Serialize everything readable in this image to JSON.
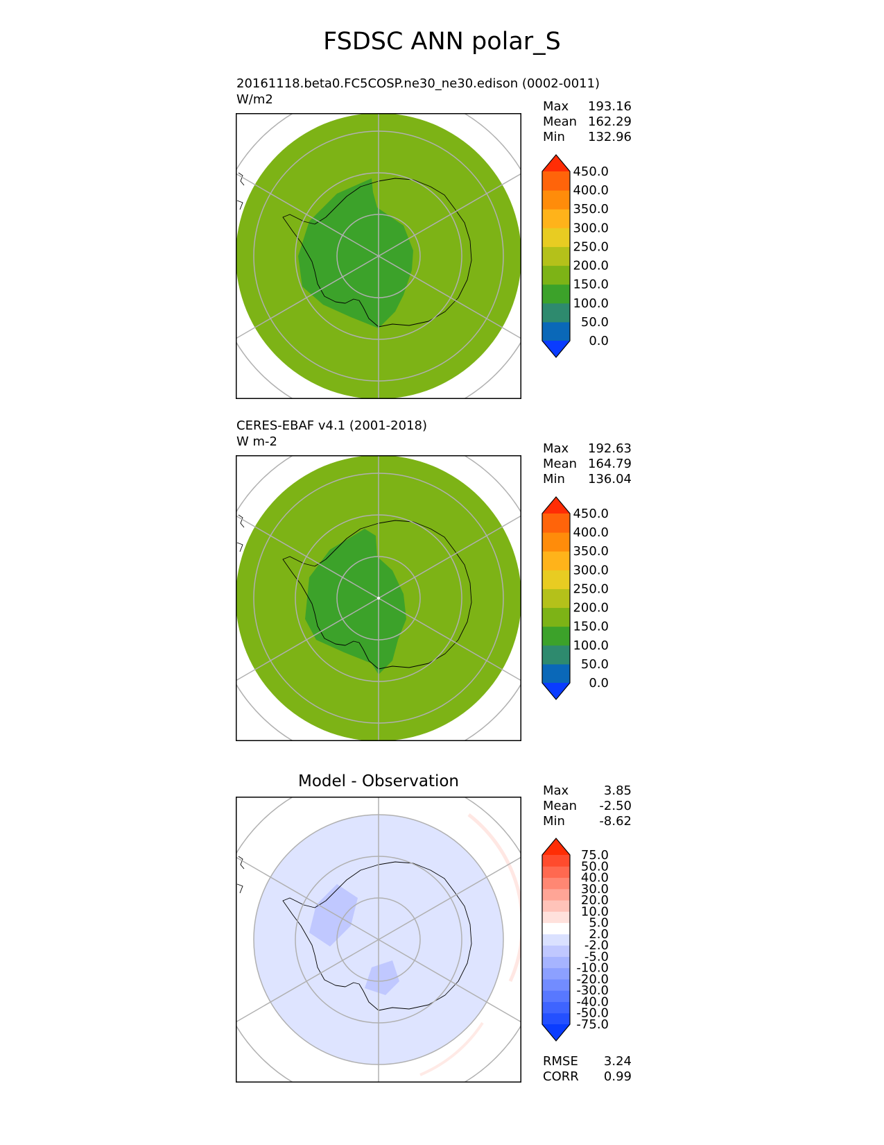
{
  "title": "FSDSC ANN polar_S",
  "panels": [
    {
      "id": "test",
      "title": "20161118.beta0.FC5COSP.ne30_ne30.edison (0002-0011)",
      "units": "W/m2",
      "stats": [
        {
          "label": "Max",
          "value": "193.16"
        },
        {
          "label": "Mean",
          "value": "162.29"
        },
        {
          "label": "Min",
          "value": "132.96"
        }
      ]
    },
    {
      "id": "reference",
      "title": "CERES-EBAF v4.1 (2001-2018)",
      "units": "W m-2",
      "stats": [
        {
          "label": "Max",
          "value": "192.63"
        },
        {
          "label": "Mean",
          "value": "164.79"
        },
        {
          "label": "Min",
          "value": "136.04"
        }
      ]
    },
    {
      "id": "diff",
      "title": "Model - Observation",
      "stats": [
        {
          "label": "Max",
          "value": "3.85"
        },
        {
          "label": "Mean",
          "value": "-2.50"
        },
        {
          "label": "Min",
          "value": "-8.62"
        }
      ],
      "metrics": [
        {
          "label": "RMSE",
          "value": "3.24"
        },
        {
          "label": "CORR",
          "value": "0.99"
        }
      ]
    }
  ],
  "chart_data": [
    {
      "type": "heatmap",
      "projection": "south-polar-stereographic",
      "variable": "FSDSC",
      "colorbar": {
        "tick_labels": [
          "0.0",
          "50.0",
          "100.0",
          "150.0",
          "200.0",
          "250.0",
          "300.0",
          "350.0",
          "400.0",
          "450.0"
        ],
        "colors": [
          "#0a3cff",
          "#0a68b8",
          "#2e8a6e",
          "#3ca22a",
          "#7db316",
          "#b4c11a",
          "#e8cc22",
          "#ffb31a",
          "#ff8c0a",
          "#ff640a",
          "#ff2d05"
        ],
        "extend": "both"
      },
      "dominant_value_range": [
        150,
        200
      ],
      "interior_value_range": [
        100,
        150
      ]
    },
    {
      "type": "heatmap",
      "projection": "south-polar-stereographic",
      "variable": "FSDSC",
      "colorbar": {
        "tick_labels": [
          "0.0",
          "50.0",
          "100.0",
          "150.0",
          "200.0",
          "250.0",
          "300.0",
          "350.0",
          "400.0",
          "450.0"
        ],
        "colors": [
          "#0a3cff",
          "#0a68b8",
          "#2e8a6e",
          "#3ca22a",
          "#7db316",
          "#b4c11a",
          "#e8cc22",
          "#ffb31a",
          "#ff8c0a",
          "#ff640a",
          "#ff2d05"
        ],
        "extend": "both"
      },
      "dominant_value_range": [
        150,
        200
      ],
      "interior_value_range": [
        100,
        150
      ]
    },
    {
      "type": "heatmap",
      "projection": "south-polar-stereographic",
      "variable": "FSDSC difference",
      "colorbar": {
        "tick_labels": [
          "-75.0",
          "-50.0",
          "-40.0",
          "-30.0",
          "-20.0",
          "-10.0",
          "-5.0",
          "-2.0",
          "2.0",
          "5.0",
          "10.0",
          "20.0",
          "30.0",
          "40.0",
          "50.0",
          "75.0"
        ],
        "colors": [
          "#0a3cff",
          "#2450ff",
          "#3e64ff",
          "#5878ff",
          "#728cff",
          "#8ca0ff",
          "#a6b4ff",
          "#c0c8ff",
          "#dae1ff",
          "#ffffff",
          "#ffe1dc",
          "#ffc3b9",
          "#ffa596",
          "#ff8773",
          "#ff6950",
          "#ff4b2d",
          "#ff2d05"
        ],
        "extend": "both"
      },
      "dominant_value_range": [
        -5,
        -2
      ]
    }
  ]
}
